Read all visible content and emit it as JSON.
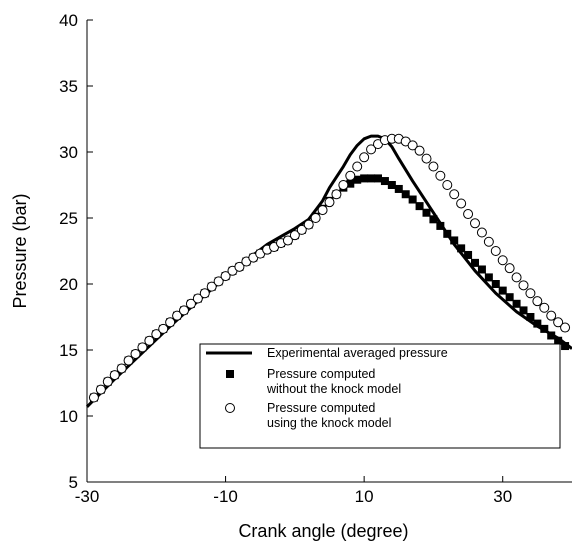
{
  "chart_data": {
    "type": "line",
    "title": "",
    "xlabel": "Crank angle (degree)",
    "ylabel": "Pressure (bar)",
    "xlim": [
      -30,
      40
    ],
    "ylim": [
      5,
      40
    ],
    "xticks": [
      -30,
      -10,
      10,
      30
    ],
    "xtick_labels": [
      "-30",
      "-10",
      "10",
      "30"
    ],
    "yticks": [
      5,
      10,
      15,
      20,
      25,
      30,
      35,
      40
    ],
    "ytick_labels": [
      "5",
      "10",
      "15",
      "20",
      "25",
      "30",
      "35",
      "40"
    ],
    "grid": false,
    "legend_position": "bottom-right",
    "legend": {
      "entries": [
        {
          "lines": [
            "Experimental averaged pressure"
          ],
          "marker": "line"
        },
        {
          "lines": [
            "Pressure computed",
            "without the knock model"
          ],
          "marker": "filled-square"
        },
        {
          "lines": [
            "Pressure computed",
            "using the knock model"
          ],
          "marker": "open-circle"
        }
      ]
    },
    "series": [
      {
        "marker": "line",
        "color": "#000000",
        "x": [
          -30,
          -26,
          -22,
          -18,
          -14,
          -10,
          -7,
          -4,
          -2,
          0,
          2,
          4,
          5,
          6,
          7,
          8,
          9,
          10,
          11,
          12,
          13,
          14,
          15,
          17,
          20,
          23,
          26,
          29,
          32,
          35,
          38,
          40
        ],
        "y": [
          10.7,
          12.8,
          14.8,
          16.8,
          18.7,
          20.5,
          21.8,
          23.0,
          23.6,
          24.2,
          24.9,
          26.3,
          27.3,
          28.1,
          28.9,
          29.8,
          30.5,
          31.0,
          31.2,
          31.2,
          31.0,
          30.4,
          29.5,
          27.8,
          25.4,
          23.0,
          21.0,
          19.3,
          17.9,
          16.8,
          15.9,
          15.1
        ]
      },
      {
        "marker": "filled-square",
        "color": "#000000",
        "x": [
          -29,
          -28,
          -27,
          -26,
          -25,
          -24,
          -23,
          -22,
          -21,
          -20,
          -19,
          -18,
          -17,
          -16,
          -15,
          -14,
          -13,
          -12,
          -11,
          -10,
          -9,
          -8,
          -7,
          -6,
          -5,
          -4,
          -3,
          -2,
          -1,
          0,
          1,
          2,
          3,
          4,
          5,
          6,
          7,
          8,
          9,
          10,
          11,
          12,
          13,
          14,
          15,
          16,
          17,
          18,
          19,
          20,
          21,
          22,
          23,
          24,
          25,
          26,
          27,
          28,
          29,
          30,
          31,
          32,
          33,
          34,
          35,
          36,
          37,
          38,
          39,
          40
        ],
        "y": [
          11.4,
          12.0,
          12.6,
          13.1,
          13.6,
          14.2,
          14.7,
          15.2,
          15.7,
          16.2,
          16.6,
          17.1,
          17.6,
          18.0,
          18.5,
          18.9,
          19.3,
          19.8,
          20.2,
          20.6,
          21.0,
          21.3,
          21.7,
          22.0,
          22.3,
          22.6,
          22.8,
          23.1,
          23.3,
          23.7,
          24.1,
          24.5,
          25.1,
          25.7,
          26.3,
          26.8,
          27.3,
          27.6,
          27.9,
          28.0,
          28.0,
          28.0,
          27.8,
          27.5,
          27.2,
          26.8,
          26.4,
          25.9,
          25.4,
          24.9,
          24.4,
          23.8,
          23.3,
          22.7,
          22.2,
          21.6,
          21.1,
          20.5,
          20.0,
          19.5,
          19.0,
          18.5,
          18.0,
          17.5,
          17.0,
          16.6,
          16.1,
          15.7,
          15.3,
          14.9
        ]
      },
      {
        "marker": "open-circle",
        "color": "#000000",
        "x": [
          -29,
          -28,
          -27,
          -26,
          -25,
          -24,
          -23,
          -22,
          -21,
          -20,
          -19,
          -18,
          -17,
          -16,
          -15,
          -14,
          -13,
          -12,
          -11,
          -10,
          -9,
          -8,
          -7,
          -6,
          -5,
          -4,
          -3,
          -2,
          -1,
          0,
          1,
          2,
          3,
          4,
          5,
          6,
          7,
          8,
          9,
          10,
          11,
          12,
          13,
          14,
          15,
          16,
          17,
          18,
          19,
          20,
          21,
          22,
          23,
          24,
          25,
          26,
          27,
          28,
          29,
          30,
          31,
          32,
          33,
          34,
          35,
          36,
          37,
          38,
          39,
          40
        ],
        "y": [
          11.4,
          12.0,
          12.6,
          13.1,
          13.6,
          14.2,
          14.7,
          15.2,
          15.7,
          16.2,
          16.6,
          17.1,
          17.6,
          18.0,
          18.5,
          18.9,
          19.3,
          19.8,
          20.2,
          20.6,
          21.0,
          21.3,
          21.7,
          22.0,
          22.3,
          22.6,
          22.8,
          23.1,
          23.3,
          23.7,
          24.1,
          24.5,
          25.0,
          25.6,
          26.2,
          26.8,
          27.5,
          28.2,
          28.9,
          29.6,
          30.2,
          30.6,
          30.9,
          31.0,
          31.0,
          30.8,
          30.5,
          30.1,
          29.5,
          28.9,
          28.2,
          27.5,
          26.8,
          26.1,
          25.3,
          24.6,
          23.9,
          23.2,
          22.5,
          21.8,
          21.2,
          20.5,
          19.9,
          19.3,
          18.7,
          18.2,
          17.6,
          17.1,
          16.7,
          16.2
        ]
      }
    ]
  }
}
